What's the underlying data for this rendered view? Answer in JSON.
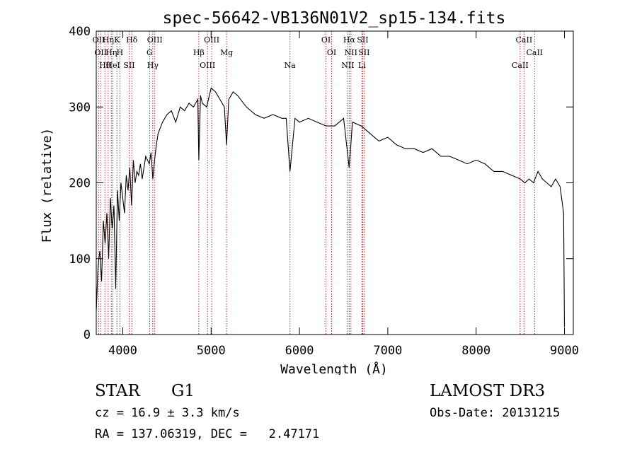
{
  "chart_data": {
    "type": "line",
    "title": "spec-56642-VB136N01V2_sp15-134.fits",
    "xlabel": "Wavelength (Å)",
    "ylabel": "Flux (relative)",
    "xlim": [
      3700,
      9100
    ],
    "ylim": [
      0,
      400
    ],
    "x_ticks": [
      "4000",
      "5000",
      "6000",
      "7000",
      "8000",
      "9000"
    ],
    "x_tick_values": [
      4000,
      5000,
      6000,
      7000,
      8000,
      9000
    ],
    "y_ticks": [
      "0",
      "100",
      "200",
      "300",
      "400"
    ],
    "y_tick_values": [
      0,
      100,
      200,
      300,
      400
    ],
    "grid": false,
    "line_color": "#000000",
    "marker_color": "#b22222",
    "series": [
      {
        "x": [
          3700,
          3720,
          3740,
          3760,
          3780,
          3800,
          3820,
          3840,
          3860,
          3880,
          3900,
          3920,
          3940,
          3960,
          3980,
          4000,
          4020,
          4040,
          4060,
          4080,
          4100,
          4120,
          4140,
          4160,
          4180,
          4200,
          4220,
          4240,
          4260,
          4280,
          4300,
          4320,
          4340,
          4360,
          4380,
          4400,
          4450,
          4500,
          4550,
          4600,
          4650,
          4700,
          4750,
          4800,
          4850,
          4861,
          4880,
          4900,
          4950,
          5000,
          5050,
          5100,
          5150,
          5175,
          5200,
          5250,
          5300,
          5400,
          5500,
          5600,
          5700,
          5800,
          5850,
          5893,
          5950,
          6000,
          6100,
          6200,
          6300,
          6400,
          6500,
          6563,
          6600,
          6700,
          6800,
          6900,
          7000,
          7100,
          7200,
          7300,
          7400,
          7500,
          7600,
          7700,
          7800,
          7900,
          8000,
          8100,
          8200,
          8300,
          8400,
          8500,
          8550,
          8600,
          8650,
          8700,
          8750,
          8800,
          8850,
          8900,
          8950,
          8990,
          9000
        ],
        "y": [
          30,
          90,
          110,
          70,
          150,
          120,
          160,
          100,
          180,
          140,
          170,
          60,
          190,
          150,
          200,
          180,
          160,
          210,
          190,
          220,
          170,
          230,
          200,
          215,
          210,
          225,
          205,
          220,
          235,
          230,
          225,
          240,
          205,
          230,
          250,
          265,
          280,
          290,
          295,
          280,
          300,
          295,
          305,
          300,
          310,
          230,
          315,
          305,
          300,
          325,
          320,
          310,
          300,
          250,
          310,
          320,
          315,
          300,
          290,
          285,
          290,
          285,
          285,
          215,
          285,
          280,
          285,
          280,
          275,
          275,
          285,
          220,
          280,
          275,
          265,
          255,
          260,
          250,
          245,
          245,
          240,
          245,
          235,
          235,
          230,
          225,
          230,
          225,
          215,
          215,
          210,
          205,
          200,
          205,
          200,
          215,
          205,
          200,
          195,
          205,
          195,
          160,
          10
        ]
      }
    ],
    "lines": [
      {
        "wl": 3727,
        "label": "OII"
      },
      {
        "wl": 3750,
        "label": "OII"
      },
      {
        "wl": 3798,
        "label": "Hθ"
      },
      {
        "wl": 3835,
        "label": "Hη"
      },
      {
        "wl": 3870,
        "label": "Hη"
      },
      {
        "wl": 3889,
        "label": "HeI"
      },
      {
        "wl": 3934,
        "label": "K"
      },
      {
        "wl": 3968,
        "label": "H"
      },
      {
        "wl": 4072,
        "label": "SII"
      },
      {
        "wl": 4102,
        "label": "Hδ"
      },
      {
        "wl": 4304,
        "label": "G"
      },
      {
        "wl": 4340,
        "label": "Hγ"
      },
      {
        "wl": 4363,
        "label": "OIII"
      },
      {
        "wl": 4861,
        "label": "Hβ"
      },
      {
        "wl": 4959,
        "label": "OIII"
      },
      {
        "wl": 5007,
        "label": "OIII"
      },
      {
        "wl": 5175,
        "label": "Mg"
      },
      {
        "wl": 5893,
        "label": "Na"
      },
      {
        "wl": 6300,
        "label": "OI"
      },
      {
        "wl": 6364,
        "label": "OI"
      },
      {
        "wl": 6548,
        "label": "NII"
      },
      {
        "wl": 6563,
        "label": "Hα"
      },
      {
        "wl": 6583,
        "label": "NII"
      },
      {
        "wl": 6707,
        "label": "Li"
      },
      {
        "wl": 6716,
        "label": "SII"
      },
      {
        "wl": 6731,
        "label": "SII"
      },
      {
        "wl": 8498,
        "label": "CaII"
      },
      {
        "wl": 8542,
        "label": "CaII"
      },
      {
        "wl": 8662,
        "label": "CaII"
      }
    ]
  },
  "info": {
    "class": "STAR",
    "subclass": "G1",
    "survey": "LAMOST DR3",
    "cz": "cz = 16.9 ± 3.3 km/s",
    "obs_date": "Obs-Date: 20131215",
    "coords": "RA = 137.06319, DEC =   2.47171"
  }
}
